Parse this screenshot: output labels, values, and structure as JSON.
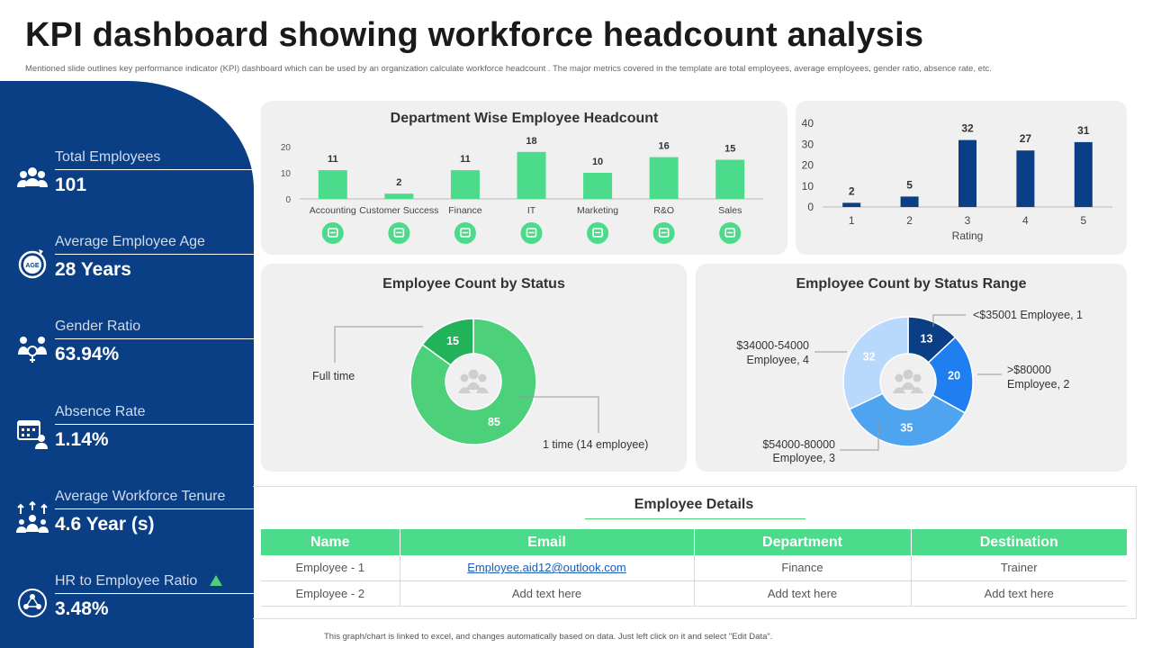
{
  "header": {
    "title": "KPI dashboard showing workforce headcount analysis",
    "subtitle": "Mentioned slide outlines key performance indicator (KPI) dashboard which can be used by an organization calculate  workforce  headcount . The major metrics covered in the template are total employees, average employees, gender ratio, absence rate, etc."
  },
  "kpis": [
    {
      "label": "Total Employees",
      "value": "101",
      "icon": "team-icon"
    },
    {
      "label": "Average Employee Age",
      "value": "28 Years",
      "icon": "age-badge-icon"
    },
    {
      "label": "Gender Ratio",
      "value": "63.94%",
      "icon": "gender-icon"
    },
    {
      "label": "Absence Rate",
      "value": "1.14%",
      "icon": "calendar-person-icon"
    },
    {
      "label": "Average Workforce Tenure",
      "value": "4.6 Year (s)",
      "icon": "growth-team-icon"
    },
    {
      "label": "HR to Employee Ratio",
      "value": "3.48%",
      "icon": "network-icon"
    }
  ],
  "colors": {
    "navy": "#0a3f85",
    "green": "#4cdb8a",
    "dark_green": "#22b35a",
    "donut_green": "#4cd07a",
    "blue_dark": "#0a3f85",
    "blue_mid": "#1f7ff0",
    "blue_light": "#4fa4f0",
    "blue_pale": "#b8d9fb"
  },
  "details": {
    "title": "Employee Details",
    "columns": [
      "Name",
      "Email",
      "Department",
      "Destination"
    ],
    "rows": [
      [
        "Employee - 1",
        "Employee.aid12@outlook.com",
        "Finance",
        "Trainer"
      ],
      [
        "Employee - 2",
        "Add text here",
        "Add text here",
        "Add text here"
      ]
    ]
  },
  "footnote": "This graph/chart is linked to excel, and changes automatically based on data. Just left click on it and select \"Edit Data\".",
  "chart_data": [
    {
      "type": "bar",
      "title": "Department Wise Employee Headcount",
      "categories": [
        "Accounting",
        "Customer Success",
        "Finance",
        "IT",
        "Marketing",
        "R&O",
        "Sales"
      ],
      "values": [
        11,
        2,
        11,
        18,
        10,
        16,
        15
      ],
      "ylim": [
        0,
        20
      ],
      "yticks": [
        "0",
        "10",
        "20"
      ],
      "icons": [
        "calculator-icon",
        "headset-icon",
        "finance-icon",
        "cloud-icon",
        "megaphone-icon",
        "research-icon",
        "sales-chart-icon"
      ]
    },
    {
      "type": "bar",
      "title": "",
      "xlabel": "Rating",
      "categories": [
        "1",
        "2",
        "3",
        "4",
        "5"
      ],
      "values": [
        2,
        5,
        32,
        27,
        31
      ],
      "ylim": [
        0,
        40
      ],
      "yticks": [
        "0",
        "10",
        "20",
        "30",
        "40"
      ]
    },
    {
      "type": "pie",
      "title": "Employee Count by Status",
      "slices": [
        {
          "label": "1 time (14 employee)",
          "value": 85
        },
        {
          "label": "Full time",
          "value": 15
        }
      ]
    },
    {
      "type": "pie",
      "title": "Employee Count by Status Range",
      "slices": [
        {
          "label": "<$35001 Employee, 1",
          "value": 13
        },
        {
          "label": ">$80000 Employee, 2",
          "value": 20
        },
        {
          "label": "$54000-80000 Employee, 3",
          "value": 35
        },
        {
          "label": "$34000-54000 Employee, 4",
          "value": 32
        }
      ]
    }
  ]
}
